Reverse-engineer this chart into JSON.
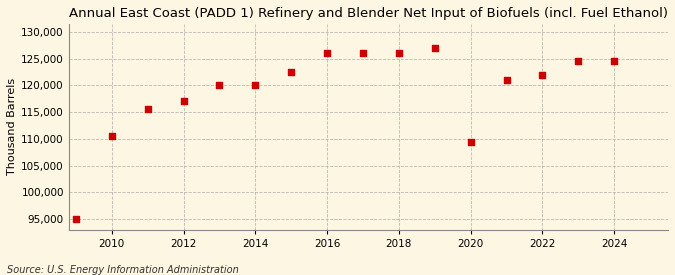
{
  "title": "Annual East Coast (PADD 1) Refinery and Blender Net Input of Biofuels (incl. Fuel Ethanol)",
  "ylabel": "Thousand Barrels",
  "source": "Source: U.S. Energy Information Administration",
  "years": [
    2009,
    2010,
    2011,
    2012,
    2013,
    2014,
    2015,
    2016,
    2017,
    2018,
    2019,
    2020,
    2021,
    2022,
    2023,
    2024
  ],
  "values": [
    95000,
    110500,
    115500,
    117000,
    120000,
    120000,
    122500,
    126000,
    126000,
    126000,
    127000,
    109500,
    121000,
    122000,
    124500,
    124500
  ],
  "marker_color": "#cc0000",
  "marker": "s",
  "marker_size": 4,
  "bg_color": "#fdf6e3",
  "grid_color": "#aaaaaa",
  "ylim": [
    93000,
    131500
  ],
  "yticks": [
    95000,
    100000,
    105000,
    110000,
    115000,
    120000,
    125000,
    130000
  ],
  "xticks": [
    2010,
    2012,
    2014,
    2016,
    2018,
    2020,
    2022,
    2024
  ],
  "title_fontsize": 9.5,
  "label_fontsize": 8,
  "tick_fontsize": 7.5,
  "source_fontsize": 7
}
